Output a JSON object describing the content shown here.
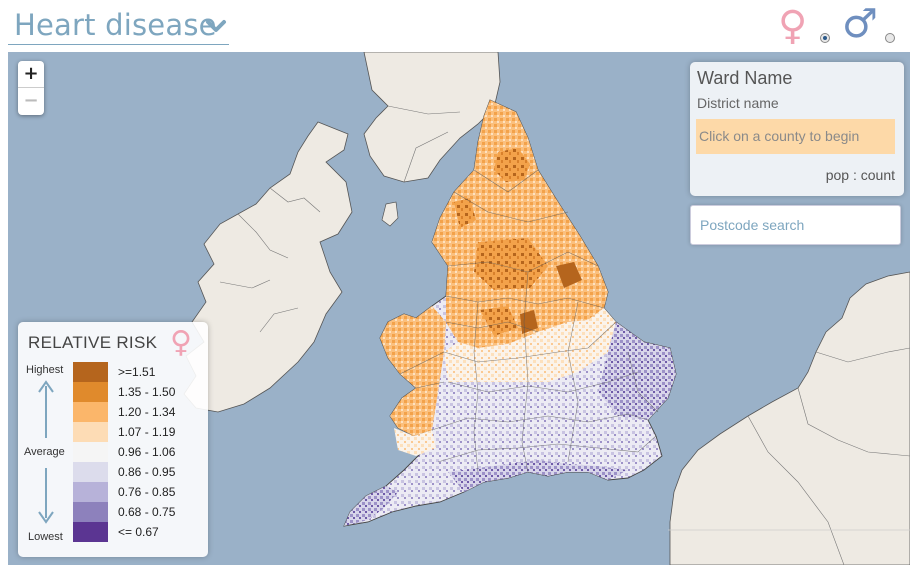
{
  "header": {
    "disease": "Heart disease",
    "sex_options": [
      {
        "name": "female",
        "glyph": "♀",
        "selected": true,
        "color": "#f0a3b4"
      },
      {
        "name": "male",
        "glyph": "♂",
        "selected": false,
        "color": "#6f8fbf"
      }
    ]
  },
  "map": {
    "sea_color": "#9ab1c8",
    "land_color": "#eeeae3",
    "zoom_in": "+",
    "zoom_out": "−"
  },
  "info_panel": {
    "ward_name": "Ward Name",
    "district_name": "District name",
    "hint": "Click on a county to begin",
    "pop_count": "pop : count"
  },
  "search": {
    "placeholder": "Postcode search"
  },
  "legend": {
    "title": "RELATIVE RISK",
    "sex_glyph": "♀",
    "highest": "Highest",
    "average": "Average",
    "lowest": "Lowest",
    "classes": [
      {
        "label": ">=1.51",
        "color": "#b5651d"
      },
      {
        "label": "1.35 - 1.50",
        "color": "#e08a2c"
      },
      {
        "label": "1.20 - 1.34",
        "color": "#fbb66a"
      },
      {
        "label": "1.07 - 1.19",
        "color": "#fddcb5"
      },
      {
        "label": "0.96 - 1.06",
        "color": "#f5f5f5"
      },
      {
        "label": "0.86 - 0.95",
        "color": "#dcdcec"
      },
      {
        "label": "0.76 - 0.85",
        "color": "#b7b2d9"
      },
      {
        "label": "0.68 - 0.75",
        "color": "#8d81bc"
      },
      {
        "label": "<= 0.67",
        "color": "#5b3592"
      }
    ]
  }
}
